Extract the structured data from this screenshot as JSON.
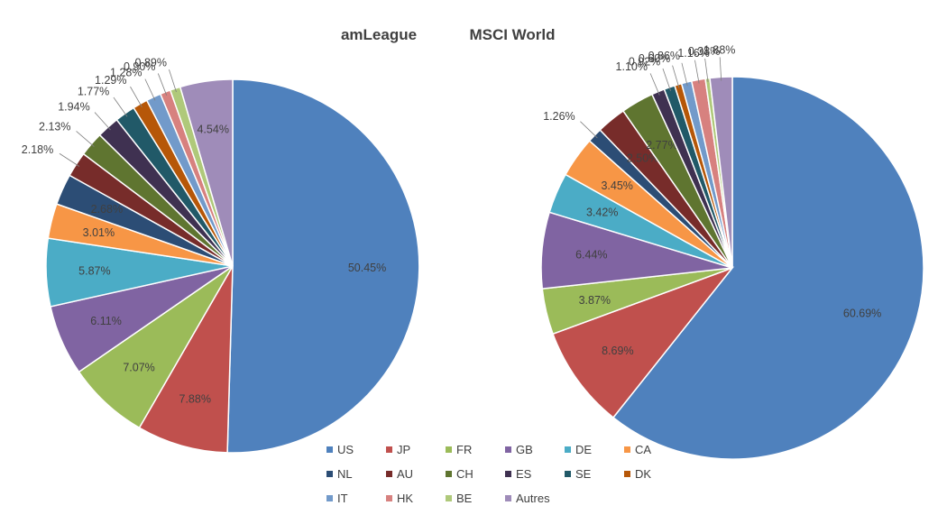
{
  "chart_data": {
    "type": "pie",
    "legend_position": "bottom",
    "categories": [
      "US",
      "JP",
      "FR",
      "GB",
      "DE",
      "CA",
      "NL",
      "AU",
      "CH",
      "ES",
      "SE",
      "DK",
      "IT",
      "HK",
      "BE",
      "Autres"
    ],
    "colors": [
      "#4F81BD",
      "#C0504D",
      "#9BBB59",
      "#8064A2",
      "#4BACC6",
      "#F79646",
      "#2C4D75",
      "#772C2A",
      "#5F7530",
      "#3F3151",
      "#215968",
      "#B65708",
      "#729ACA",
      "#D7817F",
      "#AFC97A",
      "#9F8CB9"
    ],
    "charts": [
      {
        "title": "amLeague",
        "values": [
          50.45,
          7.88,
          7.07,
          6.11,
          5.87,
          3.01,
          2.68,
          2.18,
          2.13,
          1.94,
          1.77,
          1.29,
          1.28,
          0.9,
          0.89,
          4.54
        ],
        "labels": [
          "50.45%",
          "7.88%",
          "7.07%",
          "6.11%",
          "5.87%",
          "3.01%",
          "2.68%",
          "2.18%",
          "2.13%",
          "1.94%",
          "1.77%",
          "1.29%",
          "1.28%",
          "0.90%",
          "0.89%",
          "4.54%"
        ]
      },
      {
        "title": "MSCI World",
        "values": [
          60.69,
          8.69,
          3.87,
          6.44,
          3.42,
          3.45,
          1.26,
          2.5,
          2.77,
          1.1,
          0.92,
          0.6,
          0.86,
          1.16,
          0.38,
          1.88
        ],
        "labels": [
          "60.69%",
          "8.69%",
          "3.87%",
          "6.44%",
          "3.42%",
          "3.45%",
          "1.26%",
          "2.50%",
          "2.77%",
          "1.10%",
          "0.92%",
          "0.60%",
          "0.86%",
          "1.16%",
          "0.38%",
          "1.88%"
        ]
      }
    ]
  }
}
